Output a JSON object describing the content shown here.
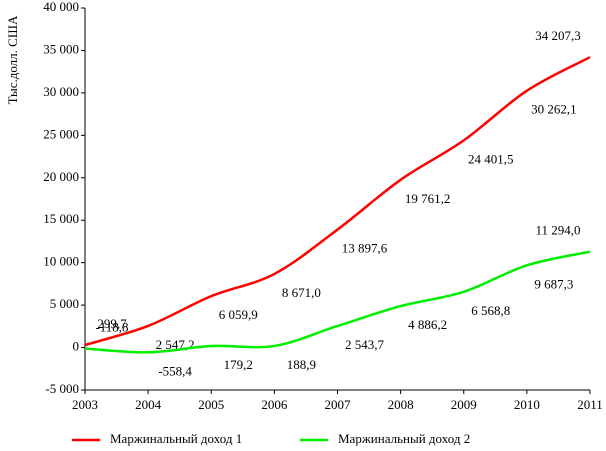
{
  "chart_data": {
    "type": "line",
    "y_label": "Тыс.долл. США",
    "categories": [
      "2003",
      "2004",
      "2005",
      "2006",
      "2007",
      "2008",
      "2009",
      "2010",
      "2011"
    ],
    "series": [
      {
        "name": "Маржинальный доход 1",
        "color": "#ff0000",
        "values": [
          299.7,
          2547.2,
          6059.9,
          8671.0,
          13897.6,
          19761.2,
          24401.5,
          30262.1,
          34207.3
        ],
        "value_labels": [
          "299,7",
          "2 547,2",
          "6 059,9",
          "8 671,0",
          "13 897,6",
          "19 761,2",
          "24 401,5",
          "30 262,1",
          "34 207,3"
        ]
      },
      {
        "name": "Маржинальный доход 2",
        "color": "#00ee00",
        "values": [
          -118.8,
          -558.4,
          179.2,
          188.9,
          2543.7,
          4886.2,
          6568.8,
          9687.3,
          11294.0
        ],
        "value_labels": [
          "-118,8",
          "-558,4",
          "179,2",
          "188,9",
          "2 543,7",
          "4 886,2",
          "6 568,8",
          "9 687,3",
          "11 294,0"
        ]
      }
    ],
    "ylim": [
      -5000,
      40000
    ],
    "yticks": [
      {
        "value": -5000,
        "label": "-5 000"
      },
      0,
      {
        "value": 5000,
        "label": "5 000"
      },
      {
        "value": 10000,
        "label": "10 000"
      },
      {
        "value": 15000,
        "label": "15 000"
      },
      {
        "value": 20000,
        "label": "20 000"
      },
      {
        "value": 25000,
        "label": "25 000"
      },
      {
        "value": 30000,
        "label": "30 000"
      },
      {
        "value": 35000,
        "label": "35 000"
      },
      {
        "value": 40000,
        "label": "40 000"
      }
    ],
    "grid": false,
    "legend": "bottom"
  }
}
